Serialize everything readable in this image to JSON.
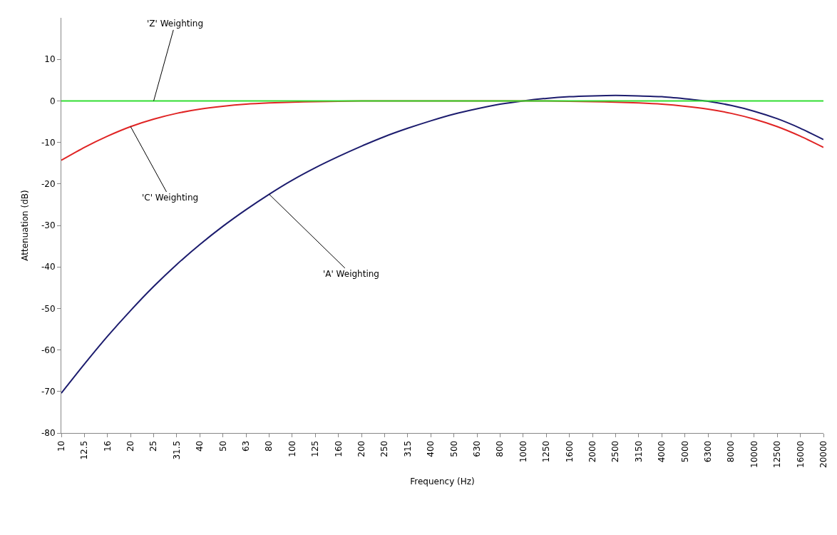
{
  "chart_data": {
    "type": "line",
    "xlabel": "Frequency (Hz)",
    "ylabel": "Attenuation (dB)",
    "categories": [
      "10",
      "12.5",
      "16",
      "20",
      "25",
      "31.5",
      "40",
      "50",
      "63",
      "80",
      "100",
      "125",
      "160",
      "200",
      "250",
      "315",
      "400",
      "500",
      "630",
      "800",
      "1000",
      "1250",
      "1600",
      "2000",
      "2500",
      "3150",
      "4000",
      "5000",
      "6300",
      "8000",
      "10000",
      "12500",
      "16000",
      "20000"
    ],
    "series": [
      {
        "color": "#1c1c6e",
        "values": [
          -70.4,
          -63.4,
          -56.7,
          -50.5,
          -44.7,
          -39.4,
          -34.6,
          -30.2,
          -26.2,
          -22.5,
          -19.1,
          -16.1,
          -13.4,
          -10.9,
          -8.6,
          -6.6,
          -4.8,
          -3.2,
          -1.9,
          -0.8,
          0,
          0.6,
          1.0,
          1.2,
          1.3,
          1.2,
          1.0,
          0.5,
          -0.1,
          -1.1,
          -2.5,
          -4.3,
          -6.6,
          -9.3
        ]
      },
      {
        "color": "#e02424",
        "values": [
          -14.3,
          -11.2,
          -8.5,
          -6.2,
          -4.4,
          -3.0,
          -2.0,
          -1.3,
          -0.8,
          -0.5,
          -0.3,
          -0.2,
          -0.1,
          0,
          0,
          0,
          0,
          0,
          0,
          0,
          0,
          0,
          -0.1,
          -0.2,
          -0.3,
          -0.5,
          -0.8,
          -1.3,
          -2.0,
          -3.0,
          -4.4,
          -6.2,
          -8.5,
          -11.2
        ]
      },
      {
        "color": "#33dd33",
        "values": [
          0,
          0,
          0,
          0,
          0,
          0,
          0,
          0,
          0,
          0,
          0,
          0,
          0,
          0,
          0,
          0,
          0,
          0,
          0,
          0,
          0,
          0,
          0,
          0,
          0,
          0,
          0,
          0,
          0,
          0,
          0,
          0,
          0,
          0
        ]
      }
    ],
    "annotations": [
      {
        "text": "'Z' Weighting",
        "x": "25",
        "y": 0
      },
      {
        "text": "'C' Weighting",
        "x": "20",
        "y": -6.2
      },
      {
        "text": "'A' Weighting",
        "x": "80",
        "y": -22.5
      }
    ],
    "ylim": [
      -80,
      20
    ],
    "yticks": [
      -80,
      -70,
      -60,
      -50,
      -40,
      -30,
      -20,
      -10,
      0,
      10
    ],
    "legend": false,
    "marker": "none",
    "line_style": "solid"
  }
}
